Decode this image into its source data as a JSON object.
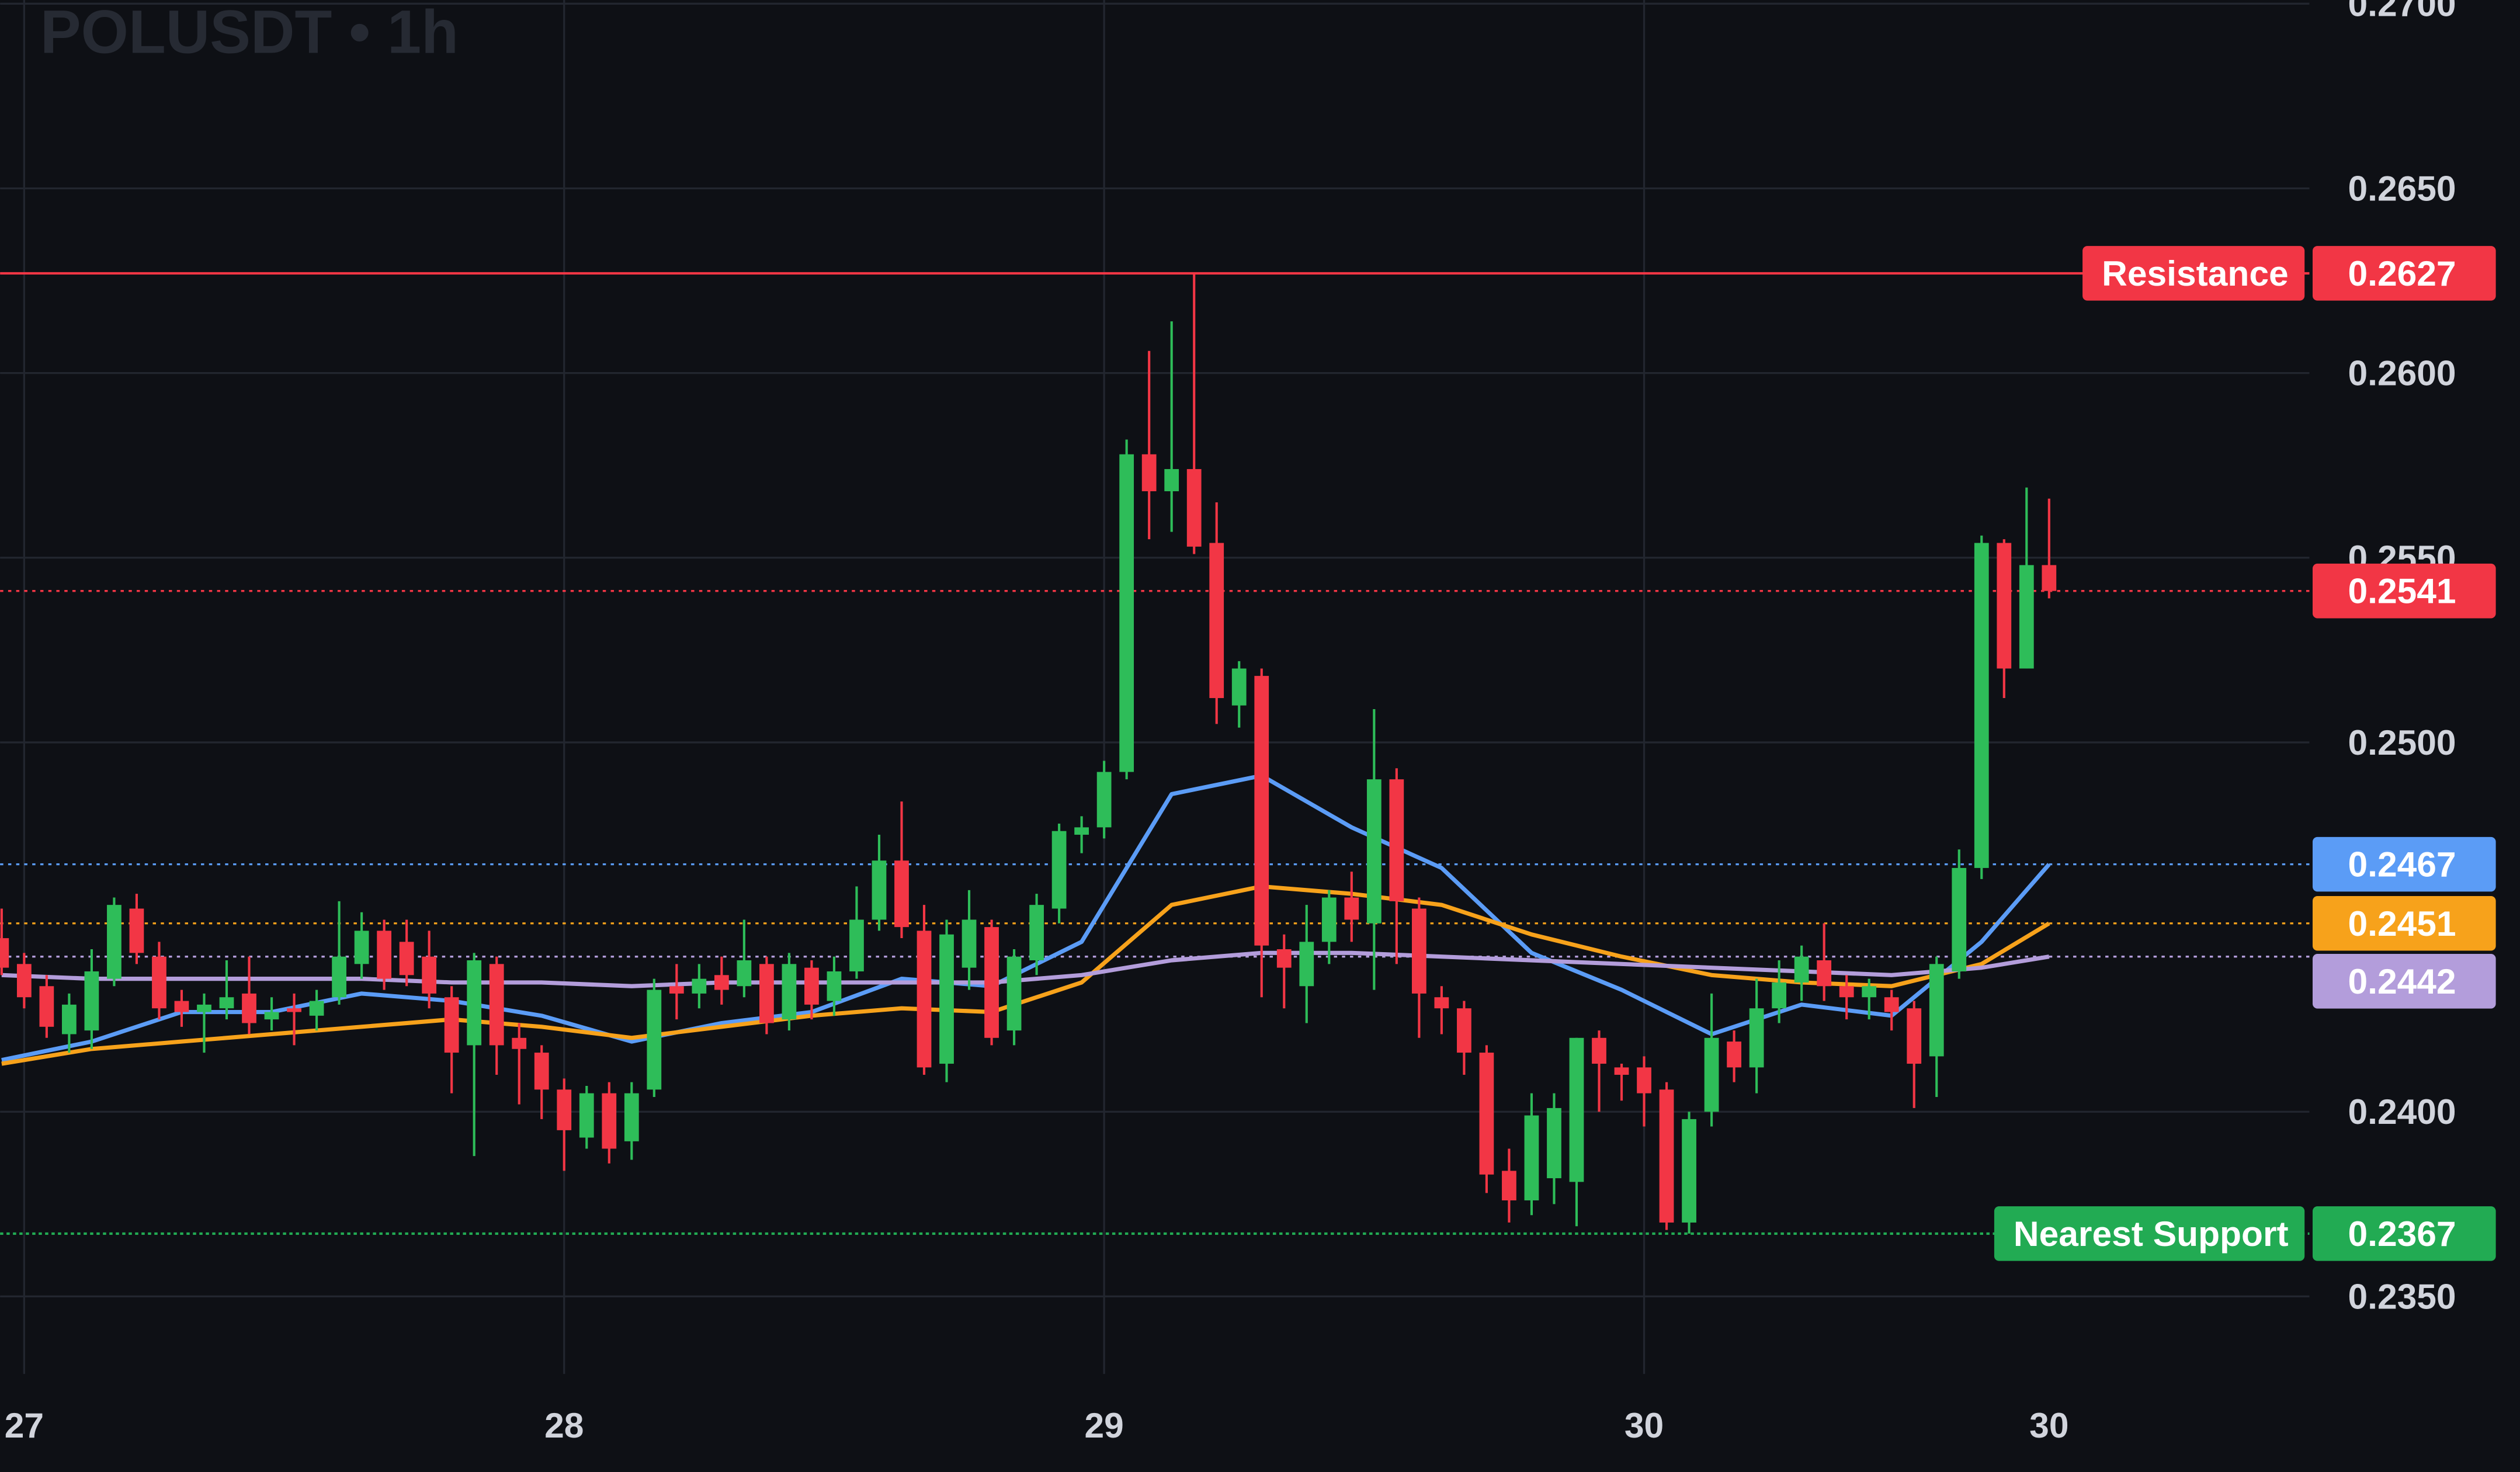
{
  "chart_data": {
    "type": "candlestick",
    "title": "POLUSDT • 1h",
    "up_color": "#2ebd59",
    "down_color": "#f23645",
    "grid": true,
    "x": [
      -1,
      0,
      1,
      2,
      3,
      4,
      5,
      6,
      7,
      8,
      9,
      10,
      11,
      12,
      13,
      14,
      15,
      16,
      17,
      18,
      19,
      20,
      21,
      22,
      23,
      24,
      25,
      26,
      27,
      28,
      29,
      30,
      31,
      32,
      33,
      34,
      35,
      36,
      37,
      38,
      39,
      40,
      41,
      42,
      43,
      44,
      45,
      46,
      47,
      48,
      49,
      50,
      51,
      52,
      53,
      54,
      55,
      56,
      57,
      58,
      59,
      60,
      61,
      62,
      63,
      64,
      65,
      66,
      67,
      68,
      69,
      70,
      71,
      72,
      73,
      74,
      75,
      76,
      77,
      78,
      79,
      80,
      81,
      82,
      83,
      84,
      85,
      86,
      87,
      88,
      89,
      90
    ],
    "open": [
      0.2447,
      0.244,
      0.2434,
      0.2421,
      0.2422,
      0.2436,
      0.2455,
      0.2442,
      0.243,
      0.2427,
      0.2428,
      0.2432,
      0.2425,
      0.2428,
      0.2426,
      0.2431,
      0.244,
      0.2449,
      0.2446,
      0.2442,
      0.2431,
      0.2418,
      0.244,
      0.242,
      0.2416,
      0.2406,
      0.2393,
      0.2405,
      0.2392,
      0.2406,
      0.2434,
      0.2432,
      0.2437,
      0.2434,
      0.244,
      0.2425,
      0.2439,
      0.243,
      0.2438,
      0.2452,
      0.2468,
      0.2449,
      0.2413,
      0.2439,
      0.245,
      0.2422,
      0.2441,
      0.2455,
      0.2475,
      0.2477,
      0.2492,
      0.2578,
      0.2568,
      0.2574,
      0.2554,
      0.251,
      0.2518,
      0.2444,
      0.2434,
      0.2446,
      0.2458,
      0.2451,
      0.249,
      0.2455,
      0.2431,
      0.2428,
      0.2416,
      0.2384,
      0.2376,
      0.2382,
      0.2381,
      0.242,
      0.2412,
      0.2412,
      0.2406,
      0.237,
      0.24,
      0.2419,
      0.2412,
      0.2428,
      0.2435,
      0.2441,
      0.2434,
      0.2431,
      0.2431,
      0.2428,
      0.2415,
      0.2438,
      0.2466,
      0.2554,
      0.252,
      0.2548
    ],
    "high": [
      0.2455,
      0.2443,
      0.2437,
      0.2432,
      0.2444,
      0.2458,
      0.2459,
      0.2446,
      0.2433,
      0.2432,
      0.2441,
      0.2442,
      0.2431,
      0.2432,
      0.2433,
      0.2457,
      0.2454,
      0.2452,
      0.2452,
      0.2449,
      0.2434,
      0.2443,
      0.2442,
      0.2424,
      0.2418,
      0.2409,
      0.2407,
      0.2408,
      0.2408,
      0.2436,
      0.244,
      0.244,
      0.2442,
      0.2452,
      0.2442,
      0.2443,
      0.2441,
      0.2442,
      0.2461,
      0.2475,
      0.2484,
      0.2456,
      0.2452,
      0.246,
      0.2452,
      0.2444,
      0.2459,
      0.2478,
      0.248,
      0.2495,
      0.2582,
      0.2606,
      0.2614,
      0.2627,
      0.2565,
      0.2522,
      0.252,
      0.2448,
      0.2456,
      0.246,
      0.2465,
      0.2509,
      0.2493,
      0.2458,
      0.2434,
      0.243,
      0.2418,
      0.239,
      0.2405,
      0.2405,
      0.242,
      0.2422,
      0.2413,
      0.2415,
      0.2408,
      0.24,
      0.2432,
      0.2422,
      0.2436,
      0.2441,
      0.2445,
      0.2451,
      0.2437,
      0.2436,
      0.2433,
      0.243,
      0.2442,
      0.2471,
      0.2556,
      0.2555,
      0.2569,
      0.2566
    ],
    "low": [
      0.2437,
      0.2428,
      0.242,
      0.2416,
      0.2417,
      0.2434,
      0.244,
      0.2425,
      0.2423,
      0.2416,
      0.2425,
      0.2421,
      0.2422,
      0.2418,
      0.2422,
      0.2429,
      0.2436,
      0.2433,
      0.2434,
      0.2428,
      0.2405,
      0.2388,
      0.241,
      0.2402,
      0.2398,
      0.2384,
      0.239,
      0.2386,
      0.2387,
      0.2404,
      0.2425,
      0.2428,
      0.2429,
      0.2431,
      0.2421,
      0.2422,
      0.2425,
      0.2426,
      0.2436,
      0.2449,
      0.2447,
      0.241,
      0.2408,
      0.2433,
      0.2418,
      0.2418,
      0.2437,
      0.2451,
      0.247,
      0.2474,
      0.249,
      0.2555,
      0.2557,
      0.2551,
      0.2505,
      0.2504,
      0.2431,
      0.2428,
      0.2424,
      0.244,
      0.2446,
      0.2433,
      0.244,
      0.242,
      0.2421,
      0.241,
      0.2378,
      0.237,
      0.2372,
      0.2375,
      0.2369,
      0.24,
      0.2403,
      0.2396,
      0.2368,
      0.2367,
      0.2396,
      0.2408,
      0.2405,
      0.2424,
      0.243,
      0.243,
      0.2425,
      0.2425,
      0.2422,
      0.2401,
      0.2404,
      0.2436,
      0.2463,
      0.2512,
      0.252,
      0.2539
    ],
    "close": [
      0.2439,
      0.2431,
      0.2423,
      0.2429,
      0.2438,
      0.2456,
      0.2443,
      0.2428,
      0.2427,
      0.2429,
      0.2431,
      0.2424,
      0.2427,
      0.2427,
      0.243,
      0.2442,
      0.2449,
      0.2436,
      0.2437,
      0.2432,
      0.2416,
      0.2441,
      0.2418,
      0.2417,
      0.2406,
      0.2395,
      0.2405,
      0.239,
      0.2405,
      0.2433,
      0.2432,
      0.2436,
      0.2433,
      0.2441,
      0.2424,
      0.244,
      0.2429,
      0.2438,
      0.2452,
      0.2468,
      0.245,
      0.2412,
      0.2448,
      0.2452,
      0.242,
      0.2442,
      0.2456,
      0.2476,
      0.2477,
      0.2492,
      0.2578,
      0.2568,
      0.2574,
      0.2553,
      0.2512,
      0.252,
      0.2445,
      0.2439,
      0.2446,
      0.2458,
      0.2452,
      0.249,
      0.2457,
      0.2432,
      0.2428,
      0.2416,
      0.2383,
      0.2376,
      0.2399,
      0.2401,
      0.242,
      0.2413,
      0.241,
      0.2405,
      0.237,
      0.2398,
      0.242,
      0.2412,
      0.2428,
      0.2435,
      0.2442,
      0.2434,
      0.2431,
      0.2434,
      0.2427,
      0.2413,
      0.244,
      0.2466,
      0.2554,
      0.252,
      0.2548,
      0.2541
    ],
    "series": [
      {
        "color": "#5b9cf6",
        "x": [
          -1,
          3,
          7,
          11,
          15,
          19,
          23,
          27,
          31,
          35,
          39,
          43,
          47,
          51,
          55,
          59,
          63,
          67,
          71,
          75,
          79,
          83,
          87,
          90
        ],
        "values": [
          0.2414,
          0.2419,
          0.2427,
          0.2427,
          0.2432,
          0.243,
          0.2426,
          0.2419,
          0.2424,
          0.2427,
          0.2436,
          0.2434,
          0.2446,
          0.2486,
          0.2491,
          0.2477,
          0.2466,
          0.2443,
          0.2433,
          0.2421,
          0.2429,
          0.2426,
          0.2446,
          0.2467
        ]
      },
      {
        "color": "#f7a21b",
        "x": [
          -1,
          3,
          7,
          11,
          15,
          19,
          23,
          27,
          31,
          35,
          39,
          43,
          47,
          51,
          55,
          59,
          63,
          67,
          71,
          75,
          79,
          83,
          87,
          90
        ],
        "values": [
          0.2413,
          0.2417,
          0.2419,
          0.2421,
          0.2423,
          0.2425,
          0.2423,
          0.242,
          0.2423,
          0.2426,
          0.2428,
          0.2427,
          0.2435,
          0.2456,
          0.2461,
          0.2459,
          0.2456,
          0.2448,
          0.2442,
          0.2437,
          0.2435,
          0.2434,
          0.244,
          0.2451
        ]
      },
      {
        "color": "#b39ddb",
        "x": [
          -1,
          3,
          7,
          11,
          15,
          19,
          23,
          27,
          31,
          35,
          39,
          43,
          47,
          51,
          55,
          59,
          63,
          67,
          71,
          75,
          79,
          83,
          87,
          90
        ],
        "values": [
          0.2437,
          0.2436,
          0.2436,
          0.2436,
          0.2436,
          0.2435,
          0.2435,
          0.2434,
          0.2435,
          0.2435,
          0.2435,
          0.2435,
          0.2437,
          0.2441,
          0.2443,
          0.2443,
          0.2442,
          0.2441,
          0.244,
          0.2439,
          0.2438,
          0.2437,
          0.2439,
          0.2442
        ]
      }
    ],
    "levels": [
      {
        "name": "Resistance",
        "value": 0.2627,
        "color": "#f23645",
        "style": "solid"
      },
      {
        "name": "Nearest Support",
        "value": 0.2367,
        "color": "#22ab53",
        "style": "dotted"
      }
    ],
    "xlim": [
      -1.07,
      101.57
    ],
    "xticks": [
      {
        "value": 0,
        "label": "27"
      },
      {
        "value": 24,
        "label": "28"
      },
      {
        "value": 48,
        "label": "29"
      },
      {
        "value": 72,
        "label": "30"
      },
      {
        "value": 90,
        "label": "30"
      }
    ],
    "ylim": [
      0.2329,
      0.2701
    ],
    "yticks": [
      {
        "value": 0.235,
        "label": "0.2350"
      },
      {
        "value": 0.24,
        "label": "0.2400"
      },
      {
        "value": 0.25,
        "label": "0.2500"
      },
      {
        "value": 0.255,
        "label": "0.2550"
      },
      {
        "value": 0.26,
        "label": "0.2600"
      },
      {
        "value": 0.265,
        "label": "0.2650"
      },
      {
        "value": 0.27,
        "label": "0.2700"
      }
    ]
  }
}
